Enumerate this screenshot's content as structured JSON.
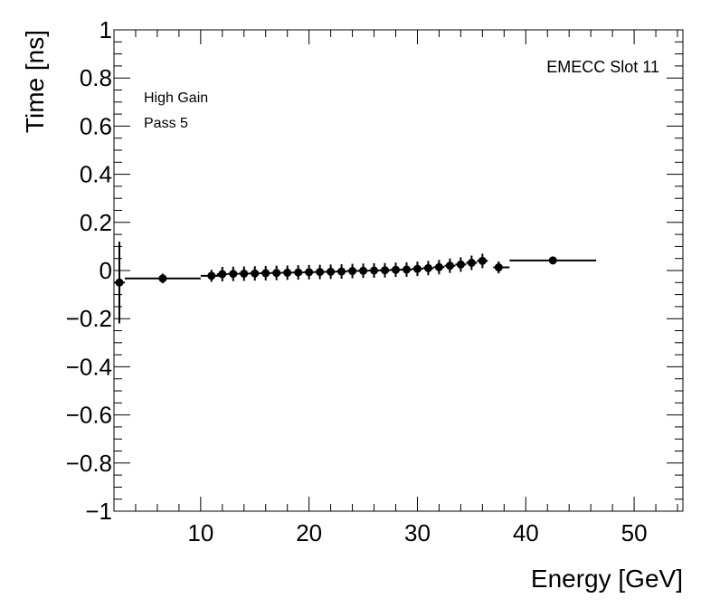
{
  "chart_data": {
    "type": "scatter",
    "xlabel": "Energy [GeV]",
    "ylabel": "Time [ns]",
    "xlim": [
      2,
      54.5
    ],
    "ylim": [
      -1,
      1
    ],
    "x_ticks": [
      10,
      20,
      30,
      40,
      50
    ],
    "y_ticks": [
      -1,
      -0.8,
      -0.6,
      -0.4,
      -0.2,
      0,
      0.2,
      0.4,
      0.6,
      0.8,
      1
    ],
    "y_tick_labels": [
      "−1",
      "−0.8",
      "−0.6",
      "−0.4",
      "−0.2",
      "0",
      "0.2",
      "0.4",
      "0.6",
      "0.8",
      "1"
    ],
    "x_tick_labels": [
      "10",
      "20",
      "30",
      "40",
      "50"
    ],
    "grid": false,
    "annotations": {
      "gain": "High Gain",
      "pass": "Pass 5",
      "slot": "EMECC Slot 11"
    },
    "series": [
      {
        "name": "EMECC Slot 11",
        "marker_color": "#000000",
        "points": [
          {
            "x": 2.5,
            "y": -0.05,
            "xlo": 2.0,
            "xhi": 3.0,
            "yerr": 0.17
          },
          {
            "x": 6.5,
            "y": -0.033,
            "xlo": 3.0,
            "xhi": 10.0,
            "yerr": 0.02
          },
          {
            "x": 11.0,
            "y": -0.022,
            "xlo": 10.0,
            "xhi": 12.0,
            "yerr": 0.025
          },
          {
            "x": 12.0,
            "y": -0.015,
            "xlo": 11.5,
            "xhi": 12.5,
            "yerr": 0.03
          },
          {
            "x": 13.0,
            "y": -0.014,
            "xlo": 12.5,
            "xhi": 13.5,
            "yerr": 0.03
          },
          {
            "x": 14.0,
            "y": -0.013,
            "xlo": 13.5,
            "xhi": 14.5,
            "yerr": 0.03
          },
          {
            "x": 15.0,
            "y": -0.012,
            "xlo": 14.5,
            "xhi": 15.5,
            "yerr": 0.03
          },
          {
            "x": 16.0,
            "y": -0.011,
            "xlo": 15.5,
            "xhi": 16.5,
            "yerr": 0.03
          },
          {
            "x": 17.0,
            "y": -0.01,
            "xlo": 16.5,
            "xhi": 17.5,
            "yerr": 0.03
          },
          {
            "x": 18.0,
            "y": -0.009,
            "xlo": 17.5,
            "xhi": 18.5,
            "yerr": 0.03
          },
          {
            "x": 19.0,
            "y": -0.008,
            "xlo": 18.5,
            "xhi": 19.5,
            "yerr": 0.03
          },
          {
            "x": 20.0,
            "y": -0.007,
            "xlo": 19.5,
            "xhi": 20.5,
            "yerr": 0.03
          },
          {
            "x": 21.0,
            "y": -0.006,
            "xlo": 20.5,
            "xhi": 21.5,
            "yerr": 0.03
          },
          {
            "x": 22.0,
            "y": -0.005,
            "xlo": 21.5,
            "xhi": 22.5,
            "yerr": 0.03
          },
          {
            "x": 23.0,
            "y": -0.004,
            "xlo": 22.5,
            "xhi": 23.5,
            "yerr": 0.03
          },
          {
            "x": 24.0,
            "y": -0.002,
            "xlo": 23.5,
            "xhi": 24.5,
            "yerr": 0.03
          },
          {
            "x": 25.0,
            "y": -0.001,
            "xlo": 24.5,
            "xhi": 25.5,
            "yerr": 0.03
          },
          {
            "x": 26.0,
            "y": 0.0,
            "xlo": 25.5,
            "xhi": 26.5,
            "yerr": 0.03
          },
          {
            "x": 27.0,
            "y": 0.001,
            "xlo": 26.5,
            "xhi": 27.5,
            "yerr": 0.03
          },
          {
            "x": 28.0,
            "y": 0.003,
            "xlo": 27.5,
            "xhi": 28.5,
            "yerr": 0.03
          },
          {
            "x": 29.0,
            "y": 0.004,
            "xlo": 28.5,
            "xhi": 29.5,
            "yerr": 0.03
          },
          {
            "x": 30.0,
            "y": 0.007,
            "xlo": 29.5,
            "xhi": 30.5,
            "yerr": 0.03
          },
          {
            "x": 31.0,
            "y": 0.01,
            "xlo": 30.5,
            "xhi": 31.5,
            "yerr": 0.03
          },
          {
            "x": 32.0,
            "y": 0.014,
            "xlo": 31.5,
            "xhi": 32.5,
            "yerr": 0.03
          },
          {
            "x": 33.0,
            "y": 0.02,
            "xlo": 32.5,
            "xhi": 33.5,
            "yerr": 0.03
          },
          {
            "x": 34.0,
            "y": 0.025,
            "xlo": 33.5,
            "xhi": 34.5,
            "yerr": 0.03
          },
          {
            "x": 35.0,
            "y": 0.032,
            "xlo": 34.5,
            "xhi": 35.5,
            "yerr": 0.03
          },
          {
            "x": 36.0,
            "y": 0.04,
            "xlo": 35.5,
            "xhi": 36.5,
            "yerr": 0.03
          },
          {
            "x": 37.5,
            "y": 0.013,
            "xlo": 37.0,
            "xhi": 38.5,
            "yerr": 0.025
          },
          {
            "x": 42.5,
            "y": 0.042,
            "xlo": 38.5,
            "xhi": 46.5,
            "yerr": 0.015
          }
        ]
      }
    ]
  }
}
